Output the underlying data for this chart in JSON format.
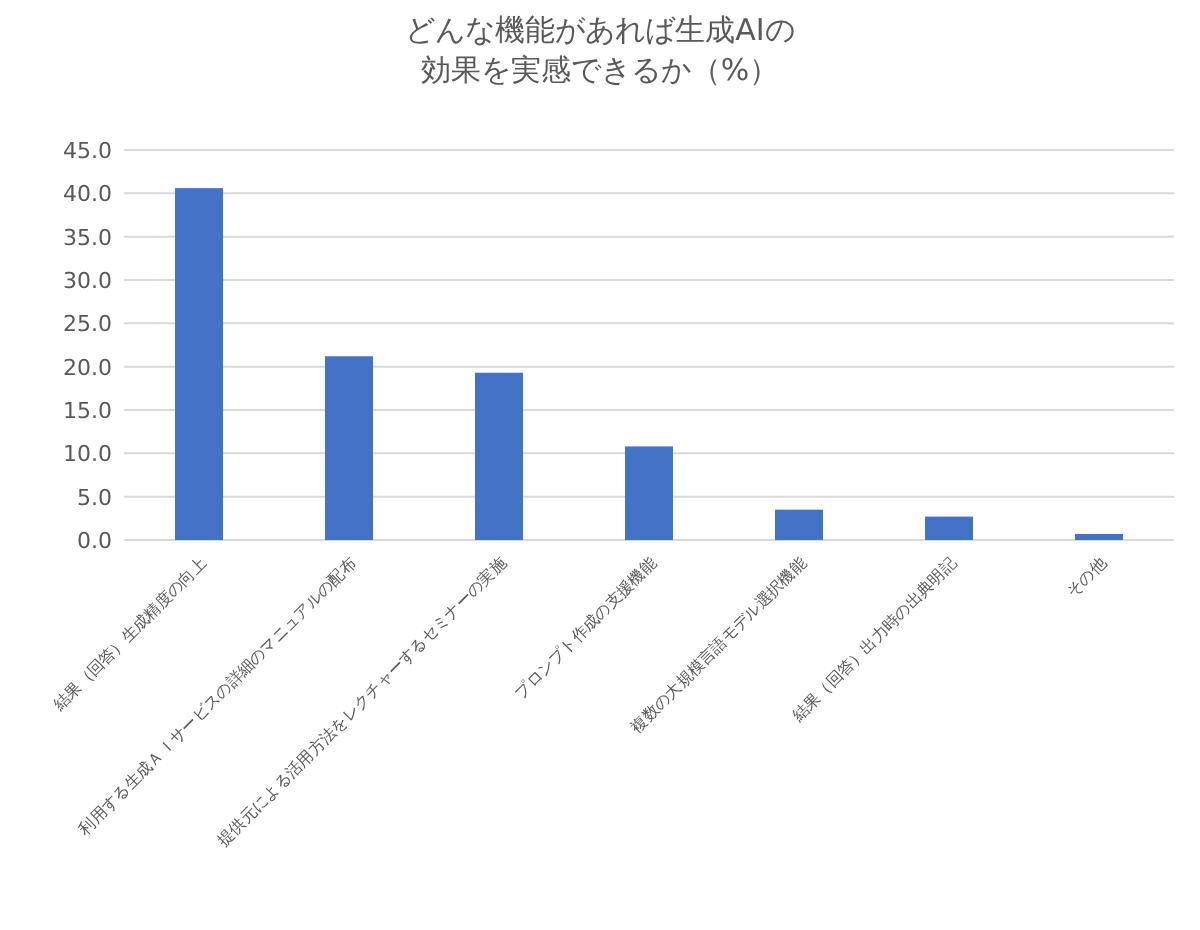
{
  "chart_data": {
    "type": "bar",
    "title": "どんな機能があれば生成AIの効果を実感できるか（%）",
    "categories": [
      "結果（回答）生成精度の向上",
      "利用する生成ＡＩサービスの詳細のマニュアルの配布",
      "提供元による活用方法をレクチャーするセミナーの実施",
      "プロンプト作成の支援機能",
      "複数の大規模言語モデル選択機能",
      "結果（回答）出力時の出典明記",
      "その他"
    ],
    "values": [
      40.6,
      21.2,
      19.3,
      10.8,
      3.5,
      2.7,
      0.7
    ],
    "color": "#4472c4",
    "ylim": [
      0,
      45
    ],
    "yticks": [
      {
        "value": 0,
        "label": "0.0"
      },
      {
        "value": 5,
        "label": "5.0"
      },
      {
        "value": 10,
        "label": "10.0"
      },
      {
        "value": 15,
        "label": "15.0"
      },
      {
        "value": 20,
        "label": "20.0"
      },
      {
        "value": 25,
        "label": "25.0"
      },
      {
        "value": 30,
        "label": "30.0"
      },
      {
        "value": 35,
        "label": "35.0"
      },
      {
        "value": 40,
        "label": "40.0"
      },
      {
        "value": 45,
        "label": "45.0"
      }
    ],
    "grid": "y"
  }
}
